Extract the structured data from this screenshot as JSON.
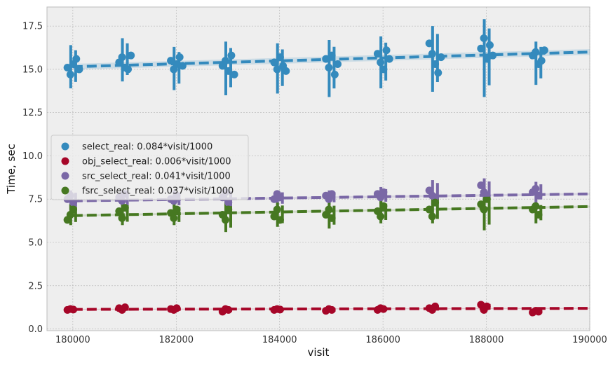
{
  "chart_data": {
    "type": "scatter",
    "xlabel": "visit",
    "ylabel": "Time, sec",
    "xlim": [
      179500,
      190000
    ],
    "ylim": [
      -0.1,
      18.6
    ],
    "x_ticks": [
      180000,
      182000,
      184000,
      186000,
      188000,
      190000
    ],
    "y_ticks": [
      0.0,
      2.5,
      5.0,
      7.5,
      10.0,
      12.5,
      15.0,
      17.5
    ],
    "x_tick_labels": [
      "180000",
      "182000",
      "184000",
      "186000",
      "188000",
      "190000"
    ],
    "y_tick_labels": [
      "0.0",
      "2.5",
      "5.0",
      "7.5",
      "10.0",
      "12.5",
      "15.0",
      "17.5"
    ],
    "grid": true,
    "legend_position": "center-left",
    "x_groups": [
      180000,
      181000,
      182000,
      183000,
      184000,
      185000,
      186000,
      187000,
      188000,
      189000
    ],
    "series": [
      {
        "name": "select_real: 0.084*visit/1000",
        "color": "#348ABD",
        "fit_line": {
          "x": [
            180000,
            190000
          ],
          "y": [
            15.15,
            16.0
          ]
        },
        "band_halfwidth": 0.17,
        "points": [
          [
            15.1,
            14.7,
            15.3,
            15.6,
            15.0
          ],
          [
            15.4,
            15.7,
            15.1,
            15.0,
            15.8
          ],
          [
            15.5,
            15.0,
            15.3,
            15.7,
            15.2
          ],
          [
            15.2,
            15.5,
            14.9,
            15.8,
            14.7
          ],
          [
            15.4,
            15.0,
            15.7,
            15.2,
            14.9
          ],
          [
            15.6,
            15.1,
            15.8,
            14.7,
            15.3
          ],
          [
            15.9,
            15.4,
            15.0,
            16.1,
            15.6
          ],
          [
            16.5,
            15.9,
            15.3,
            14.8,
            15.7
          ],
          [
            16.2,
            16.8,
            15.6,
            16.4,
            15.8
          ],
          [
            15.8,
            16.0,
            15.3,
            15.5,
            16.1
          ]
        ],
        "err_low": [
          13.9,
          14.3,
          13.8,
          13.5,
          13.6,
          13.4,
          13.9,
          13.7,
          13.4,
          14.1
        ],
        "err_high": [
          16.4,
          16.8,
          16.3,
          16.6,
          16.5,
          16.7,
          16.9,
          17.5,
          17.9,
          16.6
        ]
      },
      {
        "name": "obj_select_real: 0.006*visit/1000",
        "color": "#A60628",
        "fit_line": {
          "x": [
            180000,
            190000
          ],
          "y": [
            1.13,
            1.19
          ]
        },
        "band_halfwidth": 0.03,
        "points": [
          [
            1.1,
            1.15,
            1.12
          ],
          [
            1.2,
            1.1,
            1.25
          ],
          [
            1.15,
            1.1,
            1.2
          ],
          [
            1.0,
            1.15,
            1.1
          ],
          [
            1.1,
            1.15,
            1.12
          ],
          [
            1.05,
            1.15,
            1.1
          ],
          [
            1.1,
            1.2,
            1.15
          ],
          [
            1.2,
            1.1,
            1.3
          ],
          [
            1.4,
            1.1,
            1.3
          ],
          [
            0.95,
            1.05,
            1.0
          ]
        ],
        "err_low": [
          1.0,
          1.0,
          1.0,
          0.95,
          1.0,
          0.95,
          1.0,
          1.0,
          1.05,
          0.85
        ],
        "err_high": [
          1.25,
          1.35,
          1.3,
          1.25,
          1.25,
          1.25,
          1.3,
          1.4,
          1.5,
          1.15
        ]
      },
      {
        "name": "src_select_real: 0.041*visit/1000",
        "color": "#7A68A6",
        "fit_line": {
          "x": [
            180000,
            190000
          ],
          "y": [
            7.4,
            7.8
          ]
        },
        "band_halfwidth": 0.06,
        "points": [
          [
            7.5,
            7.7,
            7.3
          ],
          [
            7.6,
            7.4,
            7.8
          ],
          [
            7.5,
            7.4,
            7.7
          ],
          [
            7.6,
            7.9,
            7.3
          ],
          [
            7.5,
            7.8,
            7.6
          ],
          [
            7.7,
            7.5,
            7.8
          ],
          [
            7.8,
            7.6,
            7.9
          ],
          [
            8.0,
            7.7,
            7.6
          ],
          [
            8.3,
            7.9,
            7.7
          ],
          [
            7.9,
            8.1,
            7.7
          ]
        ],
        "err_low": [
          6.9,
          7.0,
          7.0,
          6.9,
          7.1,
          7.2,
          7.2,
          7.2,
          7.2,
          7.3
        ],
        "err_high": [
          8.0,
          8.0,
          8.0,
          8.1,
          8.0,
          8.0,
          8.2,
          8.6,
          8.7,
          8.5
        ]
      },
      {
        "name": "fsrc_select_real: 0.037*visit/1000",
        "color": "#467821",
        "fit_line": {
          "x": [
            180000,
            190000
          ],
          "y": [
            6.55,
            7.07
          ]
        },
        "band_halfwidth": 0.06,
        "points": [
          [
            6.3,
            6.6,
            6.9
          ],
          [
            6.8,
            6.4,
            7.0
          ],
          [
            6.7,
            6.4,
            6.9
          ],
          [
            6.6,
            6.3,
            6.9
          ],
          [
            6.5,
            6.9,
            6.3
          ],
          [
            6.6,
            6.9,
            6.4
          ],
          [
            6.8,
            6.5,
            7.1
          ],
          [
            6.9,
            6.5,
            7.3
          ],
          [
            7.2,
            6.9,
            7.5
          ],
          [
            6.9,
            7.1,
            6.6
          ]
        ],
        "err_low": [
          6.0,
          6.0,
          6.0,
          5.6,
          5.9,
          5.8,
          6.1,
          6.1,
          5.7,
          6.1
        ],
        "err_high": [
          7.2,
          7.3,
          7.2,
          7.3,
          7.3,
          7.3,
          7.4,
          7.8,
          7.9,
          7.3
        ]
      }
    ]
  }
}
